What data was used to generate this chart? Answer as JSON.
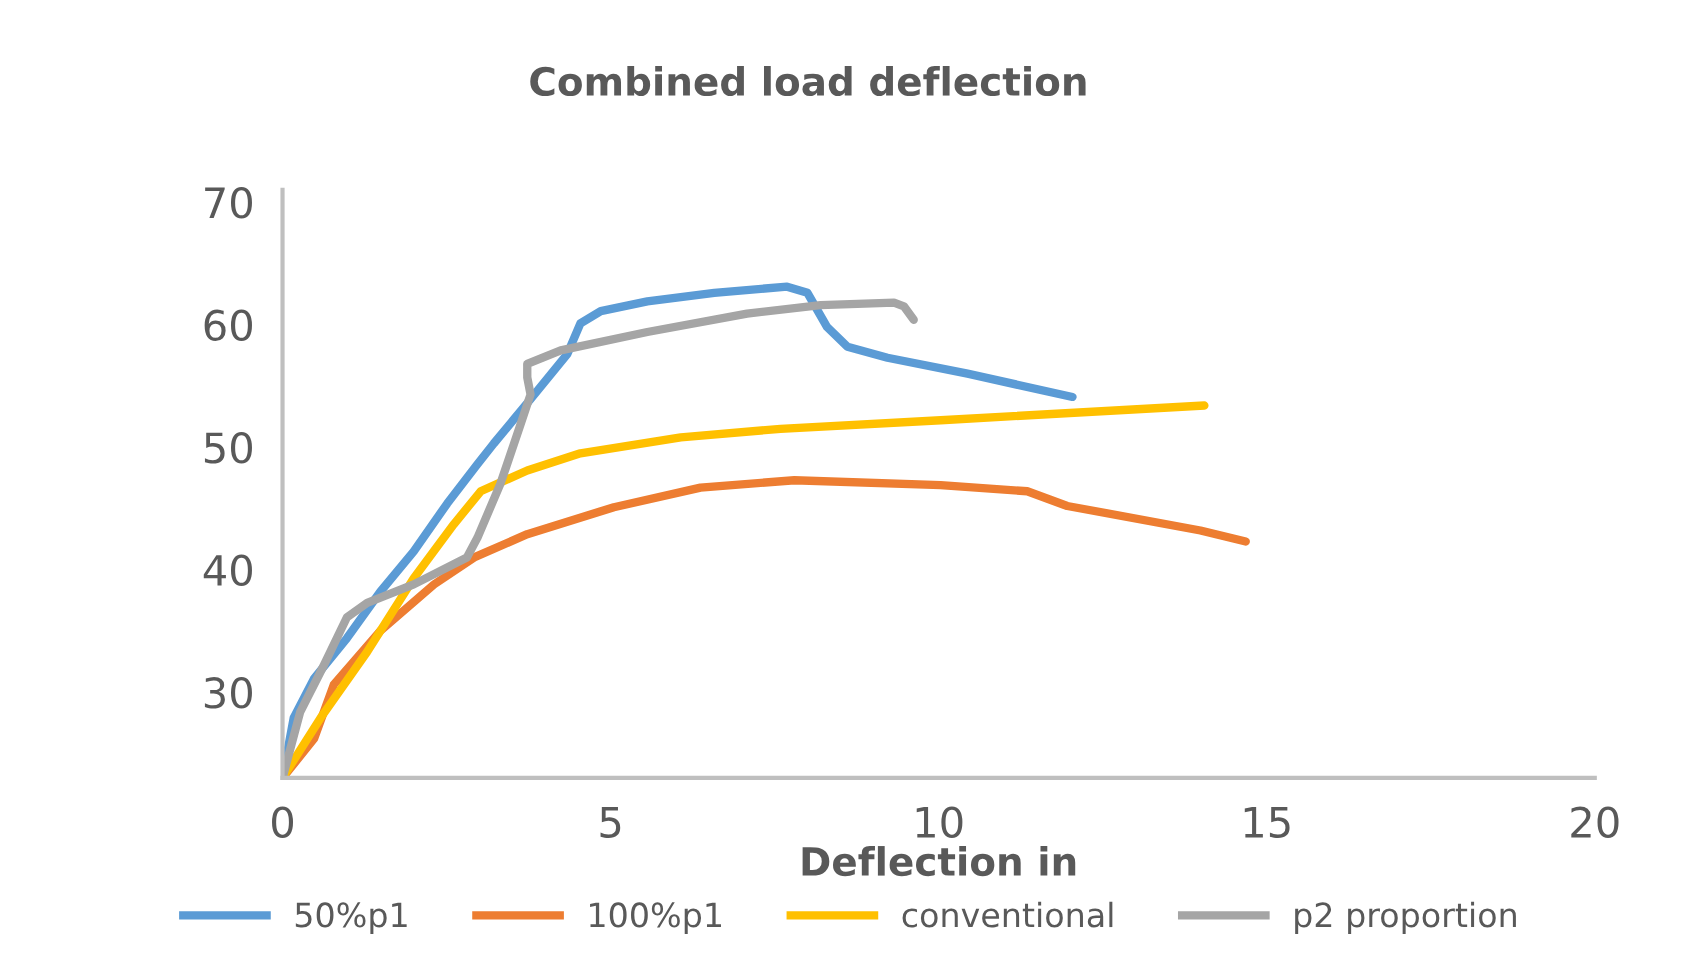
{
  "chart_data": {
    "type": "line",
    "title": "Combined load deflection",
    "xlabel": "Deflection in",
    "xlim": [
      0,
      20
    ],
    "xticks": [
      0,
      5,
      10,
      15,
      20
    ],
    "ylim": [
      23,
      71
    ],
    "yticks": [
      30,
      40,
      50,
      60,
      70
    ],
    "grid": false,
    "legend": "bottom",
    "marker": "none",
    "line_style": "solid",
    "series": [
      {
        "name": "50%p1",
        "color": "#5b9bd5",
        "x": [
          0,
          0.17,
          0.48,
          0.98,
          1.49,
          2.0,
          2.51,
          2.97,
          3.22,
          3.73,
          4.34,
          4.54,
          4.85,
          5.56,
          6.58,
          7.69,
          8.0,
          8.3,
          8.61,
          9.22,
          10.44,
          12.04
        ],
        "values": [
          23,
          27.9,
          31.1,
          34.4,
          38.2,
          41.5,
          45.4,
          48.6,
          50.3,
          53.6,
          57.6,
          60.1,
          61.1,
          61.9,
          62.6,
          63.1,
          62.6,
          59.8,
          58.2,
          57.3,
          56.0,
          54.1
        ]
      },
      {
        "name": "100%p1",
        "color": "#ed7d31",
        "x": [
          0,
          0.48,
          0.78,
          1.49,
          2.31,
          2.92,
          3.73,
          5.05,
          6.37,
          7.8,
          10.03,
          11.35,
          11.96,
          13.99,
          14.68
        ],
        "values": [
          23,
          26.2,
          30.6,
          35.0,
          38.8,
          41.0,
          42.9,
          45.1,
          46.7,
          47.3,
          46.9,
          46.4,
          45.2,
          43.2,
          42.3
        ]
      },
      {
        "name": "conventional",
        "color": "#ffc000",
        "x": [
          0,
          0.58,
          1.29,
          2.0,
          2.61,
          3.02,
          3.73,
          4.54,
          6.07,
          7.59,
          10.03,
          14.05
        ],
        "values": [
          23,
          27.9,
          33.3,
          39.3,
          43.7,
          46.4,
          48.1,
          49.5,
          50.8,
          51.5,
          52.2,
          53.4
        ]
      },
      {
        "name": "p2 proportion",
        "color": "#a5a5a5",
        "x": [
          0,
          0.27,
          0.63,
          0.98,
          1.29,
          2.0,
          2.81,
          2.97,
          3.32,
          3.63,
          3.78,
          3.73,
          3.73,
          4.24,
          5.56,
          7.08,
          8.2,
          9.32,
          9.47,
          9.62
        ],
        "values": [
          23,
          28.4,
          32.2,
          36.1,
          37.3,
          38.8,
          41.0,
          42.6,
          47.0,
          51.9,
          54.3,
          55.7,
          56.8,
          57.9,
          59.4,
          60.9,
          61.6,
          61.8,
          61.5,
          60.4
        ]
      }
    ]
  }
}
